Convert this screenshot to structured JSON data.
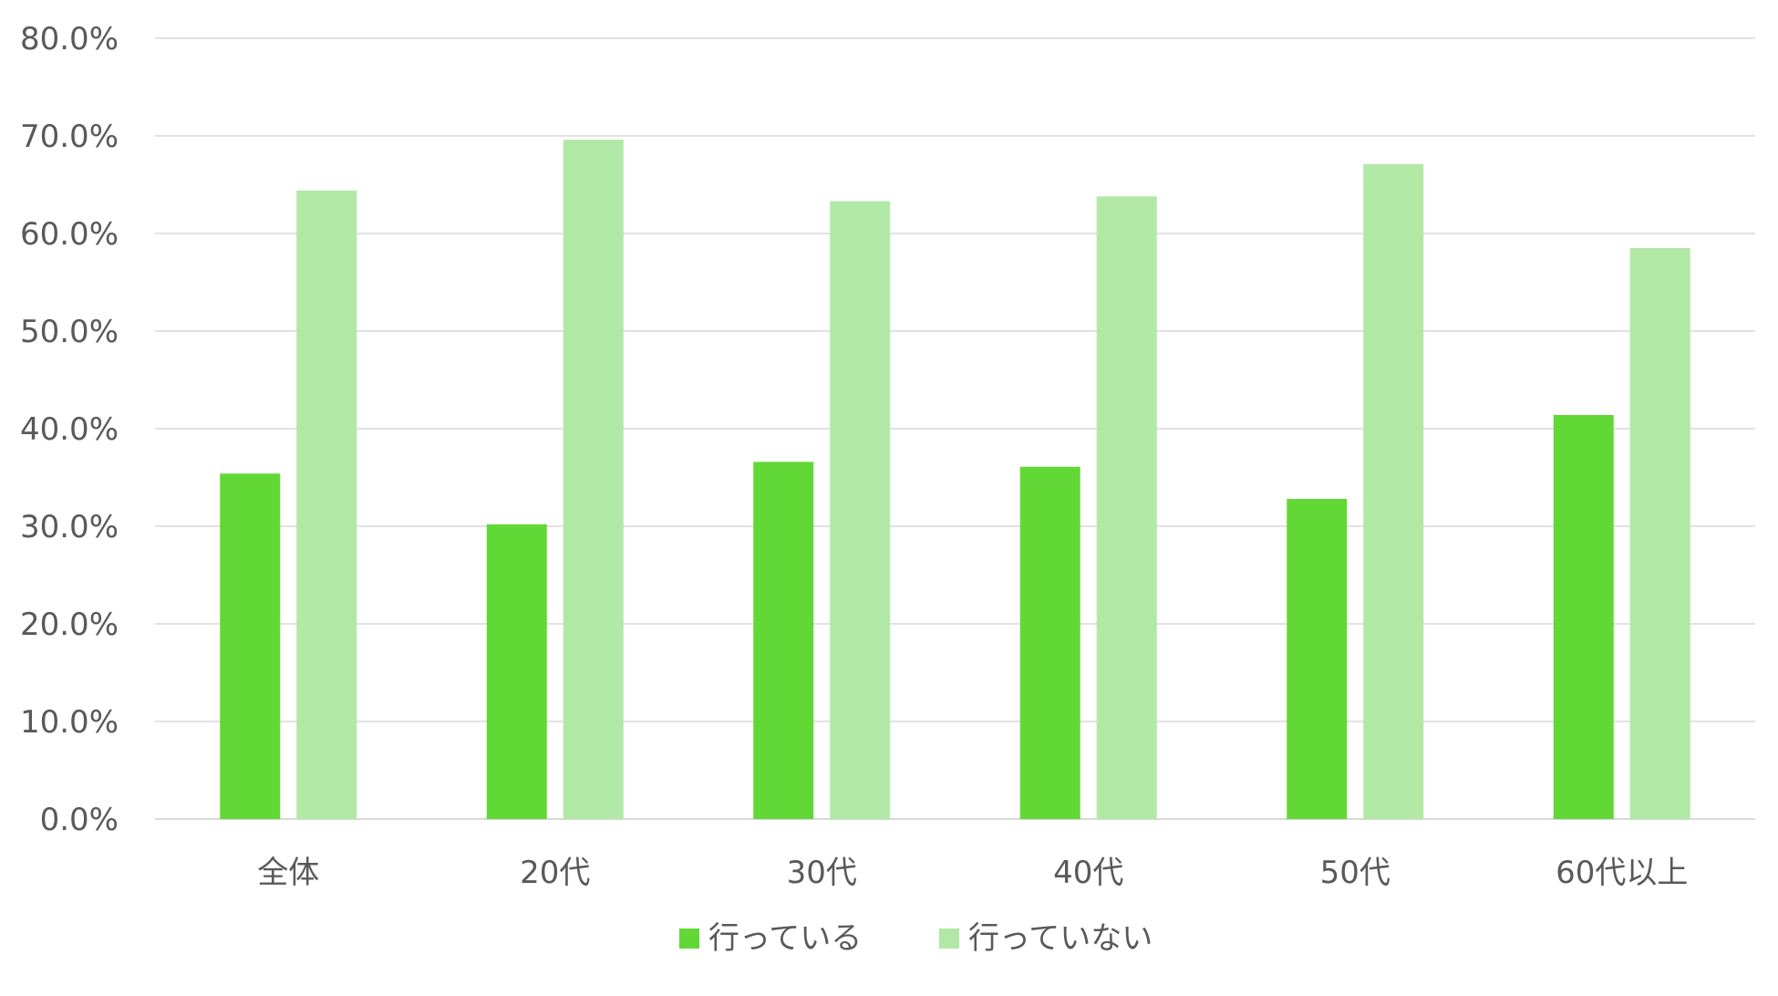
{
  "chart_data": {
    "type": "bar",
    "categories": [
      "全体",
      "20代",
      "30代",
      "40代",
      "50代",
      "60代以上"
    ],
    "series": [
      {
        "name": "行っている",
        "color": "#62d836",
        "values": [
          35.4,
          30.2,
          36.6,
          36.1,
          32.8,
          41.4
        ]
      },
      {
        "name": "行っていない",
        "color": "#b1e8a6",
        "values": [
          64.4,
          69.6,
          63.3,
          63.8,
          67.1,
          58.5
        ]
      }
    ],
    "y_ticks": [
      "0.0%",
      "10.0%",
      "20.0%",
      "30.0%",
      "40.0%",
      "50.0%",
      "60.0%",
      "70.0%",
      "80.0%"
    ],
    "ylim": [
      0,
      80
    ],
    "grid": true,
    "gridline_color": "#d9d9d9",
    "legend_position": "bottom",
    "title": "",
    "xlabel": "",
    "ylabel": ""
  }
}
